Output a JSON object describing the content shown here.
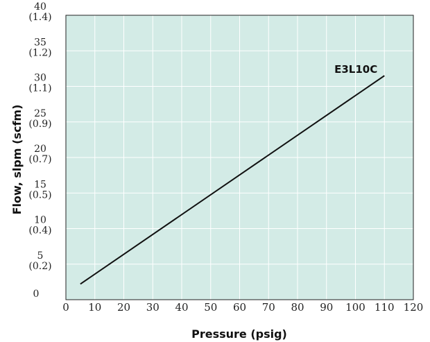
{
  "chart_data": {
    "type": "line",
    "title": "",
    "xlabel": "Pressure (psig)",
    "ylabel": "Flow, slpm (scfm)",
    "xlim": [
      0,
      120
    ],
    "ylim": [
      0,
      40
    ],
    "x_ticks": [
      "0",
      "10",
      "20",
      "30",
      "40",
      "50",
      "60",
      "70",
      "80",
      "90",
      "100",
      "110",
      "120"
    ],
    "y_ticks": [
      {
        "value": 0,
        "primary": "0",
        "secondary": ""
      },
      {
        "value": 5,
        "primary": "5",
        "secondary": "(0.2)"
      },
      {
        "value": 10,
        "primary": "10",
        "secondary": "(0.4)"
      },
      {
        "value": 15,
        "primary": "15",
        "secondary": "(0.5)"
      },
      {
        "value": 20,
        "primary": "20",
        "secondary": "(0.7)"
      },
      {
        "value": 25,
        "primary": "25",
        "secondary": "(0.9)"
      },
      {
        "value": 30,
        "primary": "30",
        "secondary": "(1.1)"
      },
      {
        "value": 35,
        "primary": "35",
        "secondary": "(1.2)"
      },
      {
        "value": 40,
        "primary": "40",
        "secondary": "(1.4)"
      }
    ],
    "grid": true,
    "background_color": "#d3ebe6",
    "grid_color": "#ffffff",
    "line_color": "#111111",
    "series": [
      {
        "name": "E3L10C",
        "x": [
          5,
          110
        ],
        "y": [
          2.2,
          31.5
        ]
      }
    ]
  }
}
